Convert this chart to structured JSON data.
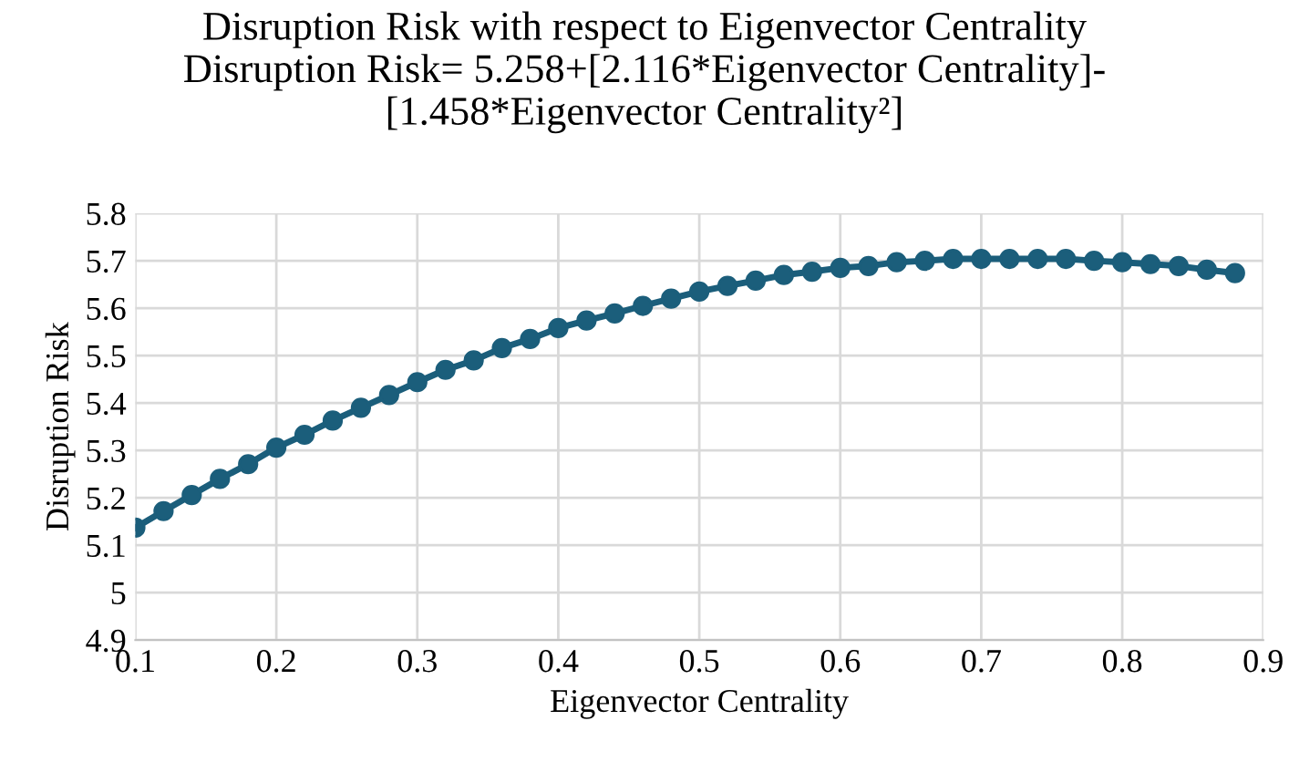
{
  "chart_data": {
    "type": "line",
    "title": "Disruption Risk with respect to Eigenvector Centrality\nDisruption Risk= 5.258+[2.116*Eigenvector Centrality]-\n[1.458*Eigenvector Centrality²]",
    "xlabel": "Eigenvector Centrality",
    "ylabel": "Disruption Risk",
    "x": [
      0.1,
      0.12,
      0.14,
      0.16,
      0.18,
      0.2,
      0.22,
      0.24,
      0.26,
      0.28,
      0.3,
      0.32,
      0.34,
      0.36,
      0.38,
      0.4,
      0.42,
      0.44,
      0.46,
      0.48,
      0.5,
      0.52,
      0.54,
      0.56,
      0.58,
      0.6,
      0.62,
      0.64,
      0.66,
      0.68,
      0.7,
      0.72,
      0.74,
      0.76,
      0.78,
      0.8,
      0.82,
      0.84,
      0.86,
      0.88
    ],
    "series": [
      {
        "color": "#1b5e7b",
        "values": [
          5.137,
          5.172,
          5.206,
          5.24,
          5.271,
          5.306,
          5.333,
          5.363,
          5.39,
          5.417,
          5.444,
          5.47,
          5.49,
          5.516,
          5.535,
          5.558,
          5.574,
          5.589,
          5.605,
          5.62,
          5.635,
          5.647,
          5.658,
          5.67,
          5.677,
          5.685,
          5.689,
          5.697,
          5.7,
          5.704,
          5.704,
          5.704,
          5.704,
          5.704,
          5.7,
          5.697,
          5.693,
          5.689,
          5.681,
          5.674
        ]
      }
    ],
    "xlim": [
      0.1,
      0.9
    ],
    "ylim": [
      4.9,
      5.8
    ],
    "xticks": [
      0.1,
      0.2,
      0.3,
      0.4,
      0.5,
      0.6,
      0.7,
      0.8,
      0.9
    ],
    "yticks": [
      4.9,
      {
        "value": 5,
        "label": "5"
      },
      5.1,
      5.2,
      5.3,
      5.4,
      5.5,
      5.6,
      5.7,
      5.8
    ],
    "grid": true,
    "marker": "circle",
    "line_style": "solid",
    "legend": false
  }
}
